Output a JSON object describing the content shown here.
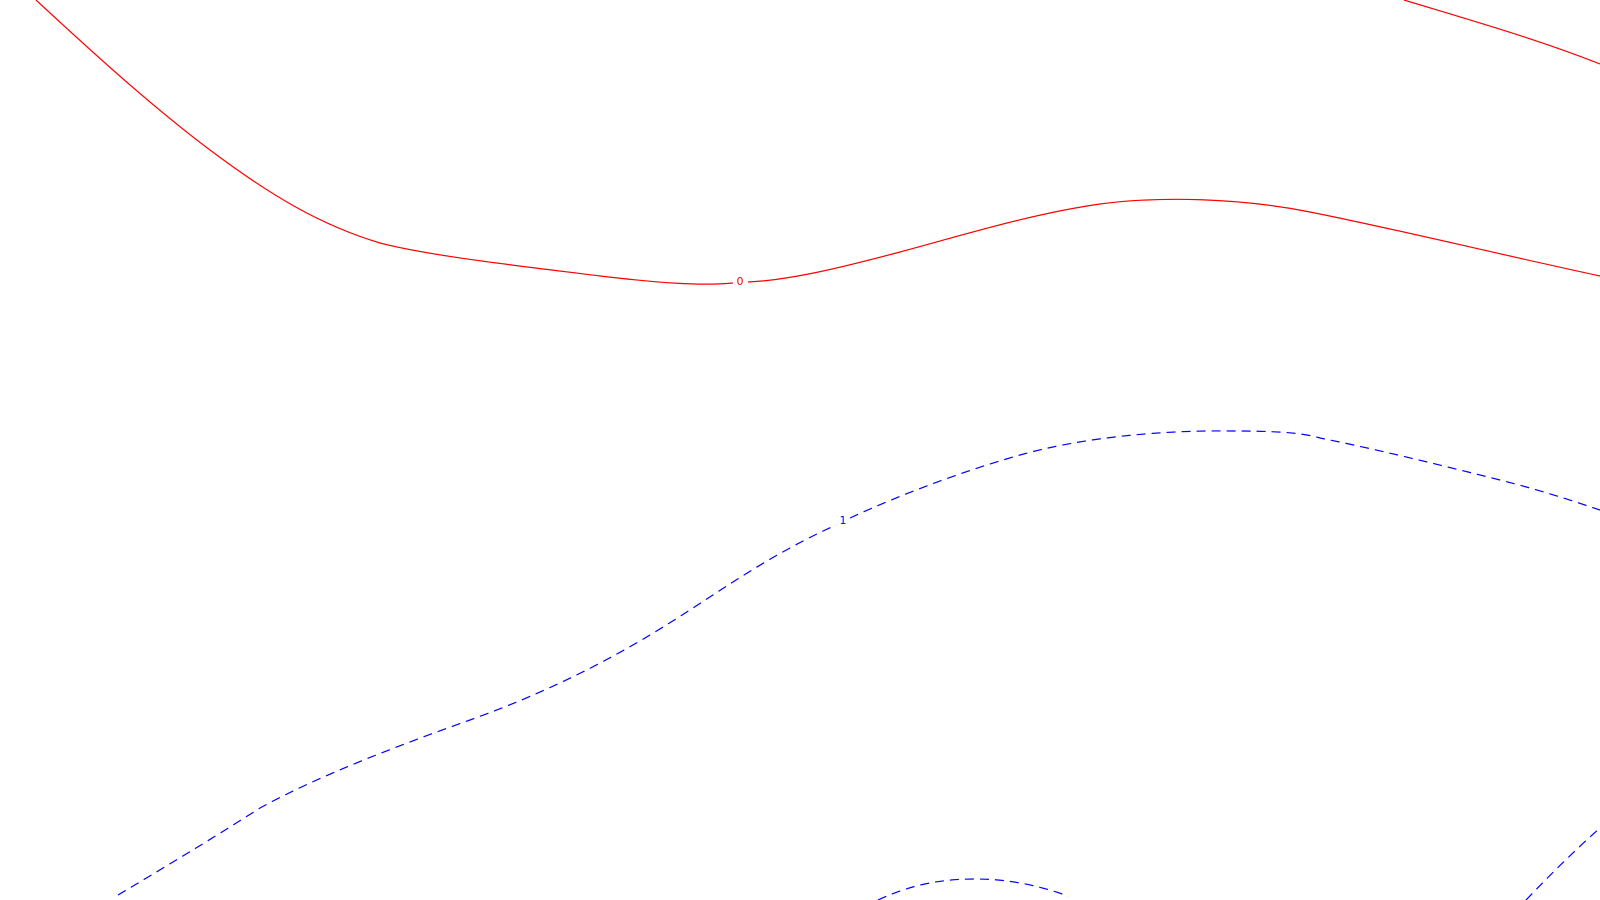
{
  "background_color": "#ffffff",
  "contours": [
    {
      "id": "contour-0-main",
      "level_label": "0",
      "color": "#ff0000",
      "style": "solid"
    },
    {
      "id": "contour-0-topright",
      "level_label": "",
      "color": "#ff0000",
      "style": "solid"
    },
    {
      "id": "contour-1-main",
      "level_label": "1",
      "color": "#0000ff",
      "style": "dashed"
    },
    {
      "id": "contour-1-bottom-mid",
      "level_label": "",
      "color": "#0000ff",
      "style": "dashed"
    },
    {
      "id": "contour-1-bottom-right",
      "level_label": "",
      "color": "#0000ff",
      "style": "dashed"
    }
  ]
}
